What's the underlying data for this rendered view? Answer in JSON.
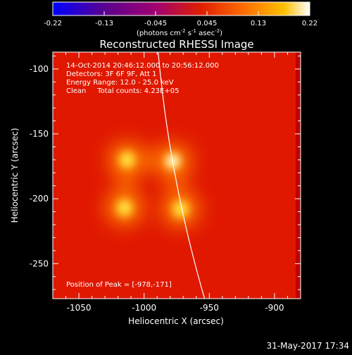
{
  "colors": {
    "background": "#000000",
    "text": "#ffffff",
    "limb": "#ffffff",
    "colormap": [
      "#0000ff",
      "#5a0090",
      "#a00070",
      "#e02000",
      "#ff7000",
      "#ffc000",
      "#ffffff"
    ]
  },
  "colorbar": {
    "ticks": [
      "-0.22",
      "-0.13",
      "-0.045",
      "0.045",
      "0.13",
      "0.22"
    ],
    "units_main": "(photons cm",
    "units_exp1": "-2",
    "units_mid": " s",
    "units_exp2": "-1",
    "units_end": " asec",
    "units_exp3": "-2",
    "units_close": ")"
  },
  "annotations": {
    "line1": "14-Oct-2014 20:46:12.000 to 20:56:12.000",
    "line2": "Detectors: 3F 6F 9F, Att 1",
    "line3": "Energy Range: 12.0 - 25.0 keV",
    "line4": "Clean     Total counts: 4.23E+05",
    "peak": "Position of Peak = [-978,-171]"
  },
  "footer": {
    "timestamp": "31-May-2017 17:34"
  },
  "chart_data": {
    "type": "heatmap",
    "title": "Reconstructed RHESSI Image",
    "xlabel": "Heliocentric X (arcsec)",
    "ylabel": "Heliocentric Y (arcsec)",
    "xlim": [
      -1070,
      -880
    ],
    "ylim": [
      -277,
      -87
    ],
    "xticks": [
      "-1050",
      "-1000",
      "-950",
      "-900"
    ],
    "xtick_values": [
      -1050,
      -1000,
      -950,
      -900
    ],
    "yticks": [
      "-100",
      "-150",
      "-200",
      "-250"
    ],
    "ytick_values": [
      -100,
      -150,
      -200,
      -250
    ],
    "clim": [
      -0.22,
      0.22
    ],
    "sources": [
      {
        "x": -1013,
        "y": -170
      },
      {
        "x": -978,
        "y": -171
      },
      {
        "x": -1015,
        "y": -207
      },
      {
        "x": -972,
        "y": -208
      }
    ],
    "peak": [
      -978,
      -171
    ]
  }
}
